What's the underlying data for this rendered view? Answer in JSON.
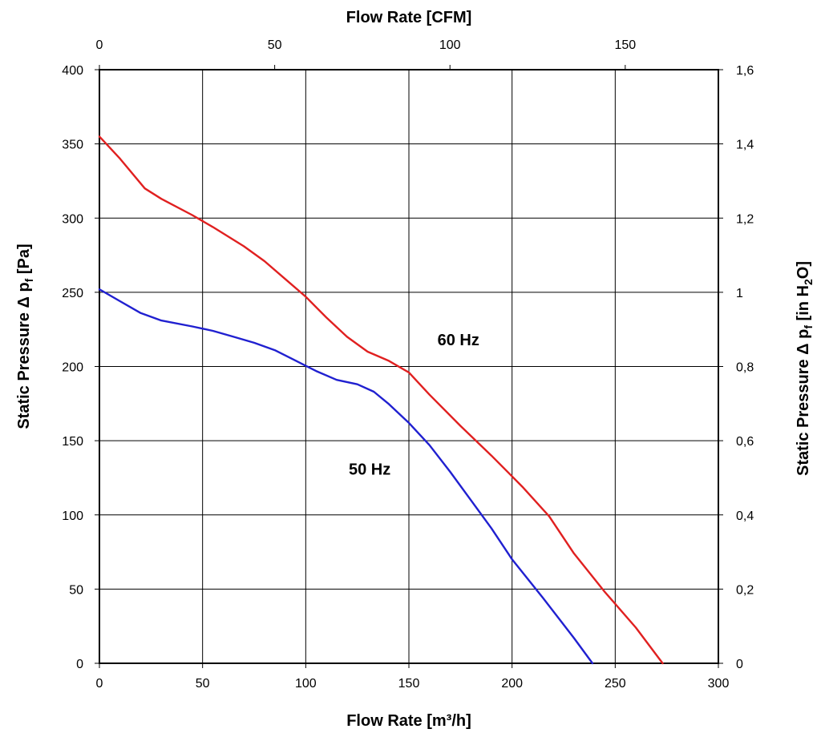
{
  "chart_data": {
    "type": "line",
    "xlabel": "Flow Rate [m³/h]",
    "x2label": "Flow Rate [CFM]",
    "ylabel": "Static Pressure Δ p_f [Pa]",
    "y2label": "Static Pressure Δ p_f [in H₂O]",
    "xlim": [
      0,
      300
    ],
    "ylim": [
      0,
      400
    ],
    "x2lim": [
      0,
      176.57
    ],
    "y2lim": [
      0,
      1.6
    ],
    "grid": true,
    "x_ticks": [
      "0",
      "50",
      "100",
      "150",
      "200",
      "250",
      "300"
    ],
    "y_ticks": [
      "0",
      "50",
      "100",
      "150",
      "200",
      "250",
      "300",
      "350",
      "400"
    ],
    "x2_ticks": [
      "0",
      "50",
      "100",
      "150"
    ],
    "y2_ticks": [
      "0",
      "0,2",
      "0,4",
      "0,6",
      "0,8",
      "1",
      "1,2",
      "1,4",
      "1,6"
    ],
    "series": [
      {
        "name": "60 Hz",
        "color": "#e02020",
        "x": [
          0,
          10,
          22,
          30,
          45,
          55,
          70,
          80,
          90,
          100,
          110,
          120,
          130,
          140,
          150,
          160,
          175,
          190,
          205,
          218,
          230,
          245,
          260,
          273
        ],
        "y": [
          355,
          340,
          320,
          313,
          302,
          294,
          281,
          271,
          259,
          247,
          233,
          220,
          210,
          204,
          196,
          181,
          160,
          140,
          119,
          99,
          74,
          48,
          24,
          0
        ]
      },
      {
        "name": "50 Hz",
        "color": "#2020d0",
        "x": [
          0,
          10,
          20,
          30,
          45,
          55,
          65,
          75,
          85,
          95,
          105,
          115,
          125,
          133,
          140,
          150,
          160,
          170,
          180,
          190,
          200,
          215,
          230,
          239
        ],
        "y": [
          252,
          244,
          236,
          231,
          227,
          224,
          220,
          216,
          211,
          204,
          197,
          191,
          188,
          183,
          175,
          162,
          147,
          129,
          110,
          91,
          70,
          44,
          17,
          0
        ]
      }
    ],
    "annotations": [
      {
        "text": "60 Hz",
        "x": 174,
        "y": 218
      },
      {
        "text": "50 Hz",
        "x": 131,
        "y": 131
      }
    ]
  }
}
